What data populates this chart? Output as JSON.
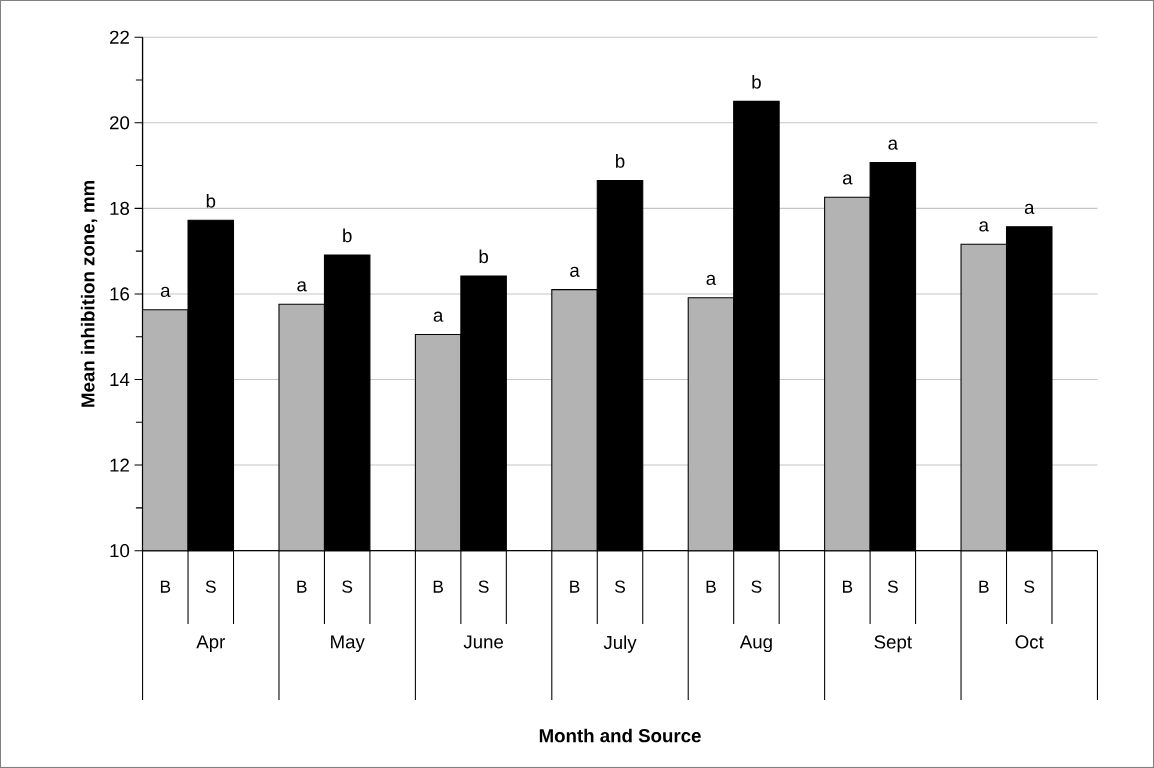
{
  "chart_data": {
    "type": "bar",
    "xlabel": "Month and Source",
    "ylabel": "Mean inhibition zone, mm",
    "categories": [
      "Apr",
      "May",
      "June",
      "July",
      "Aug",
      "Sept",
      "Oct"
    ],
    "series": [
      {
        "name": "B",
        "color": "#b3b3b3",
        "values": [
          15.63,
          15.76,
          15.05,
          16.1,
          15.91,
          18.26,
          17.16
        ],
        "value_labels": [
          "a",
          "a",
          "a",
          "a",
          "a",
          "a",
          "a"
        ]
      },
      {
        "name": "S",
        "color": "#000000",
        "values": [
          17.72,
          16.91,
          16.42,
          18.65,
          20.5,
          19.07,
          17.57
        ],
        "value_labels": [
          "b",
          "b",
          "b",
          "b",
          "b",
          "a",
          "a"
        ]
      }
    ],
    "ylim": [
      10,
      22
    ],
    "yticks": [
      10,
      12,
      14,
      16,
      18,
      20,
      22
    ],
    "grid": "y"
  }
}
